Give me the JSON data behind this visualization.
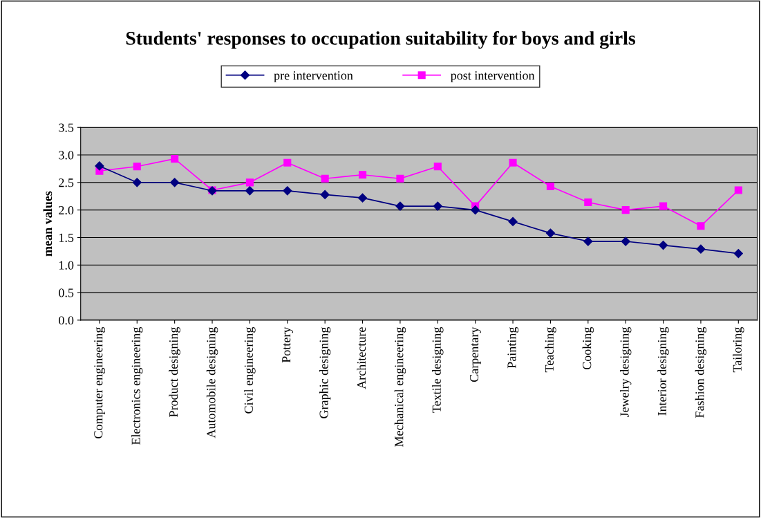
{
  "chart_data": {
    "type": "line",
    "title": "Students' responses to occupation suitability for boys and girls",
    "ylabel": "mean values",
    "categories": [
      "Computer engineering",
      "Electronics engineering",
      "Product designing",
      "Automobile designing",
      "Civil engineering",
      "Pottery",
      "Graphic designing",
      "Architecture",
      "Mechanical engineering",
      "Textile designing",
      "Carpentary",
      "Painting",
      "Teaching",
      "Cooking",
      "Jewelry designing",
      "Interior designing",
      "Fashion designing",
      "Tailoring"
    ],
    "series": [
      {
        "name": "pre intervention",
        "color": "#000080",
        "marker": "diamond",
        "values": [
          2.8,
          2.5,
          2.5,
          2.35,
          2.35,
          2.35,
          2.28,
          2.22,
          2.07,
          2.07,
          2.0,
          1.79,
          1.58,
          1.43,
          1.43,
          1.36,
          1.29,
          1.21
        ]
      },
      {
        "name": "post intervention",
        "color": "#ff00ff",
        "marker": "square",
        "values": [
          2.71,
          2.79,
          2.93,
          2.36,
          2.5,
          2.86,
          2.57,
          2.64,
          2.57,
          2.79,
          2.07,
          2.86,
          2.43,
          2.14,
          2.0,
          2.07,
          1.71,
          2.36
        ]
      }
    ],
    "ylim": [
      0,
      3.5
    ],
    "yticks": [
      {
        "value": 0,
        "label": "0.0"
      },
      {
        "value": 0.5,
        "label": "0.5"
      },
      {
        "value": 1,
        "label": "1.0"
      },
      {
        "value": 1.5,
        "label": "1.5"
      },
      {
        "value": 2,
        "label": "2.0"
      },
      {
        "value": 2.5,
        "label": "2.5"
      },
      {
        "value": 3,
        "label": "3.0"
      },
      {
        "value": 3.5,
        "label": "3.5"
      }
    ],
    "grid": "y",
    "legend": "top",
    "line_style": "solid"
  }
}
